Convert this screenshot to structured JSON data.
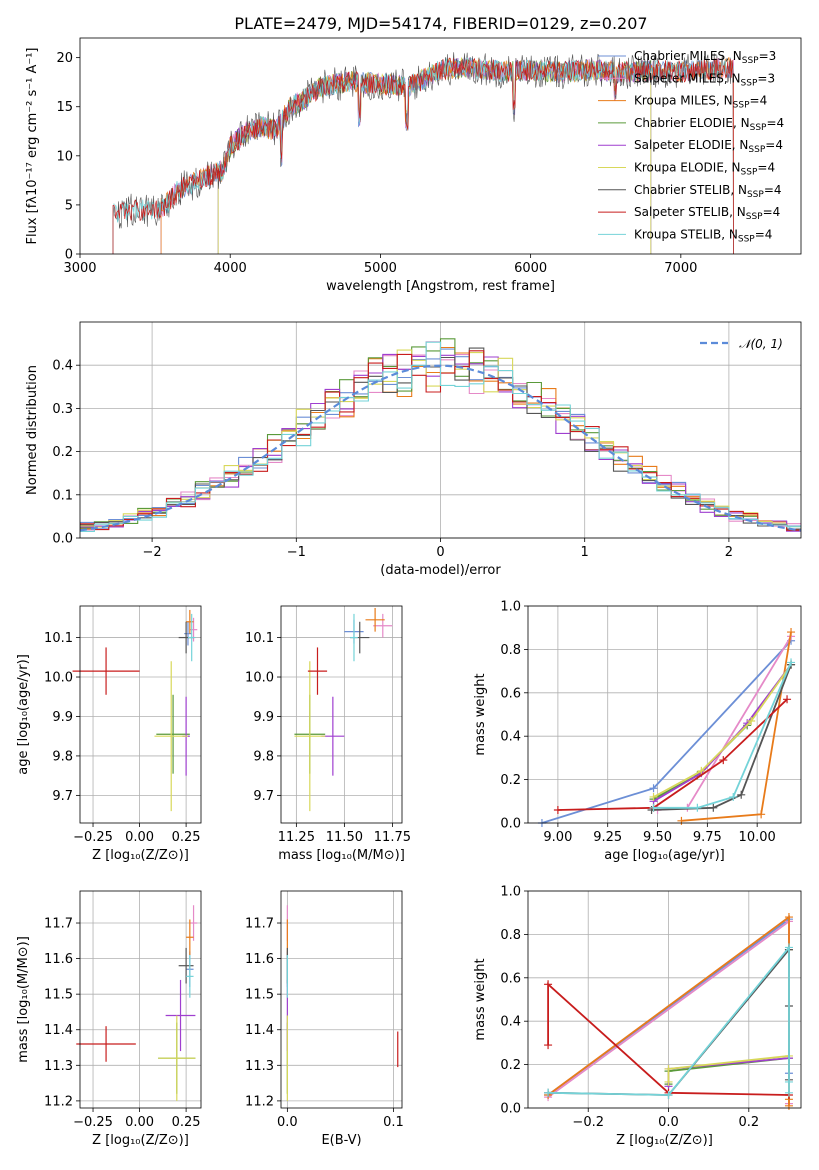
{
  "figure_title": "PLATE=2479, MJD=54174, FIBERID=0129, z=0.207",
  "colors": {
    "Chabrier MILES": "#6c8fd6",
    "Salpeter MILES": "#e58ac8",
    "Kroupa MILES": "#e87b1a",
    "Chabrier ELODIE": "#5a9a3a",
    "Salpeter ELODIE": "#9f3fcf",
    "Kroupa ELODIE": "#d8d85a",
    "Chabrier STELIB": "#555555",
    "Salpeter STELIB": "#c81d1d",
    "Kroupa STELIB": "#74d3d8"
  },
  "chart_data": [
    {
      "id": "spectrum",
      "type": "line",
      "title": "PLATE=2479, MJD=54174, FIBERID=0129, z=0.207",
      "xlabel": "wavelength [Angstrom, rest frame]",
      "ylabel": "Flux [fλ10⁻¹⁷ erg cm⁻² s⁻¹ A⁻¹]",
      "xlim": [
        3000,
        7800
      ],
      "ylim": [
        0,
        22
      ],
      "xticks": [
        3000,
        4000,
        5000,
        6000,
        7000
      ],
      "yticks": [
        0,
        5,
        10,
        15,
        20
      ],
      "grid": false,
      "legend_position": "upper-right",
      "series": [
        {
          "name": "Chabrier MILES, N_SSP=3",
          "color": "#6c8fd6",
          "x_range": [
            3540,
            7350
          ]
        },
        {
          "name": "Salpeter MILES, N_SSP=3",
          "color": "#e58ac8",
          "x_range": [
            3540,
            7350
          ]
        },
        {
          "name": "Kroupa MILES, N_SSP=4",
          "color": "#e87b1a",
          "x_range": [
            3540,
            7350
          ]
        },
        {
          "name": "Chabrier ELODIE, N_SSP=4",
          "color": "#5a9a3a",
          "x_range": [
            3920,
            6800
          ]
        },
        {
          "name": "Salpeter ELODIE, N_SSP=4",
          "color": "#9f3fcf",
          "x_range": [
            3920,
            6800
          ]
        },
        {
          "name": "Kroupa ELODIE, N_SSP=4",
          "color": "#d8d85a",
          "x_range": [
            3920,
            6800
          ]
        },
        {
          "name": "Chabrier STELIB, N_SSP=4",
          "color": "#555555",
          "x_range": [
            3220,
            7350
          ]
        },
        {
          "name": "Salpeter STELIB, N_SSP=4",
          "color": "#c81d1d",
          "x_range": [
            3220,
            7350
          ]
        },
        {
          "name": "Kroupa STELIB, N_SSP=4",
          "color": "#74d3d8",
          "x_range": [
            3220,
            7350
          ]
        }
      ],
      "continuum": {
        "x": [
          3220,
          3400,
          3550,
          3650,
          3750,
          3850,
          3950,
          4000,
          4100,
          4200,
          4300,
          4400,
          4500,
          4600,
          4800,
          5000,
          5200,
          5400,
          5600,
          5800,
          6000,
          6200,
          6400,
          6600,
          6800,
          7000,
          7200,
          7350
        ],
        "y": [
          4.2,
          4.5,
          4.6,
          6.5,
          7.2,
          8.0,
          8.5,
          11.0,
          12.3,
          13.0,
          12.6,
          15.0,
          15.8,
          17.0,
          17.6,
          17.3,
          17.1,
          18.8,
          19.0,
          18.6,
          18.7,
          18.5,
          18.8,
          18.5,
          18.7,
          18.6,
          18.8,
          19.0
        ]
      }
    },
    {
      "id": "residuals",
      "type": "bar",
      "subtype": "step-histogram",
      "xlabel": "(data-model)/error",
      "ylabel": "Normed distribution",
      "xlim": [
        -2.5,
        2.5
      ],
      "ylim": [
        0,
        0.5
      ],
      "xticks": [
        -2,
        -1,
        0,
        1,
        2
      ],
      "yticks": [
        0.0,
        0.1,
        0.2,
        0.3,
        0.4
      ],
      "grid": true,
      "legend": [
        {
          "name": "N(0,1)",
          "style": "dashed",
          "color": "#5b8bd9"
        }
      ],
      "legend_position": "upper-right",
      "bin_width": 0.1,
      "bins_start": -2.5,
      "reference": "normal(0,1)"
    },
    {
      "id": "age_vs_Z",
      "type": "scatter",
      "subtype": "error-bars",
      "xlabel": "Z [log₁₀(Z/Z⊙)]",
      "ylabel": "age  [log₁₀(age/yr)]",
      "xlim": [
        -0.32,
        0.33
      ],
      "ylim": [
        9.63,
        10.18
      ],
      "xticks": [
        -0.25,
        0.0,
        0.25
      ],
      "yticks": [
        9.7,
        9.8,
        9.9,
        10.0,
        10.1
      ],
      "grid": true,
      "points": [
        {
          "model": "Chabrier MILES",
          "x": 0.26,
          "y": 10.11,
          "xerr": 0.02,
          "yerr": 0.03
        },
        {
          "model": "Salpeter MILES",
          "x": 0.29,
          "y": 10.12,
          "xerr": 0.02,
          "yerr": 0.03
        },
        {
          "model": "Kroupa MILES",
          "x": 0.27,
          "y": 10.14,
          "xerr": 0.02,
          "yerr": 0.03
        },
        {
          "model": "Chabrier ELODIE",
          "x": 0.18,
          "y": 9.855,
          "xerr": 0.09,
          "yerr": 0.1
        },
        {
          "model": "Salpeter ELODIE",
          "x": 0.25,
          "y": 9.85,
          "xerr": 0.02,
          "yerr": 0.1
        },
        {
          "model": "Kroupa ELODIE",
          "x": 0.17,
          "y": 9.85,
          "xerr": 0.09,
          "yerr": 0.19
        },
        {
          "model": "Chabrier STELIB",
          "x": 0.25,
          "y": 10.1,
          "xerr": 0.04,
          "yerr": 0.04
        },
        {
          "model": "Salpeter STELIB",
          "x": -0.18,
          "y": 10.015,
          "xerr": 0.18,
          "yerr": 0.06
        },
        {
          "model": "Kroupa STELIB",
          "x": 0.28,
          "y": 10.1,
          "xerr": 0.02,
          "yerr": 0.06
        }
      ]
    },
    {
      "id": "age_vs_mass",
      "type": "scatter",
      "subtype": "error-bars",
      "xlabel": "mass [log₁₀(M/M⊙)]",
      "xlim": [
        11.17,
        11.8
      ],
      "ylim": [
        9.63,
        10.18
      ],
      "xticks": [
        11.25,
        11.5,
        11.75
      ],
      "yticks": [
        9.7,
        9.8,
        9.9,
        10.0,
        10.1
      ],
      "grid": true,
      "points": [
        {
          "model": "Chabrier MILES",
          "x": 11.55,
          "y": 10.115,
          "xerr": 0.05,
          "yerr": 0.03
        },
        {
          "model": "Salpeter MILES",
          "x": 11.7,
          "y": 10.13,
          "xerr": 0.05,
          "yerr": 0.03
        },
        {
          "model": "Kroupa MILES",
          "x": 11.66,
          "y": 10.145,
          "xerr": 0.05,
          "yerr": 0.03
        },
        {
          "model": "Chabrier ELODIE",
          "x": 11.32,
          "y": 9.855,
          "xerr": 0.08,
          "yerr": 0.1
        },
        {
          "model": "Salpeter ELODIE",
          "x": 11.44,
          "y": 9.85,
          "xerr": 0.06,
          "yerr": 0.1
        },
        {
          "model": "Kroupa ELODIE",
          "x": 11.32,
          "y": 9.85,
          "xerr": 0.08,
          "yerr": 0.19
        },
        {
          "model": "Chabrier STELIB",
          "x": 11.58,
          "y": 10.1,
          "xerr": 0.05,
          "yerr": 0.04
        },
        {
          "model": "Salpeter STELIB",
          "x": 11.36,
          "y": 10.015,
          "xerr": 0.05,
          "yerr": 0.06
        },
        {
          "model": "Kroupa STELIB",
          "x": 11.55,
          "y": 10.1,
          "xerr": 0.02,
          "yerr": 0.06
        }
      ]
    },
    {
      "id": "mass_weight_vs_age",
      "type": "line",
      "xlabel": "age  [log₁₀(age/yr)]",
      "ylabel": "mass weight",
      "xlim": [
        8.85,
        10.22
      ],
      "ylim": [
        0,
        1.0
      ],
      "xticks": [
        9.0,
        9.25,
        9.5,
        9.75,
        10.0
      ],
      "yticks": [
        0.0,
        0.2,
        0.4,
        0.6,
        0.8,
        1.0
      ],
      "grid": true,
      "series": [
        {
          "name": "Chabrier MILES",
          "x": [
            8.92,
            9.48,
            10.17
          ],
          "y": [
            0.0,
            0.16,
            0.84
          ]
        },
        {
          "name": "Salpeter MILES",
          "x": [
            9.5,
            9.65,
            10.17
          ],
          "y": [
            0.06,
            0.07,
            0.86
          ]
        },
        {
          "name": "Kroupa MILES",
          "x": [
            9.62,
            10.02,
            10.17
          ],
          "y": [
            0.01,
            0.04,
            0.88
          ]
        },
        {
          "name": "Chabrier ELODIE",
          "x": [
            9.48,
            9.7,
            9.95,
            10.17
          ],
          "y": [
            0.11,
            0.22,
            0.45,
            0.73
          ]
        },
        {
          "name": "Salpeter ELODIE",
          "x": [
            9.48,
            9.72,
            9.95,
            10.17
          ],
          "y": [
            0.1,
            0.23,
            0.46,
            0.73
          ]
        },
        {
          "name": "Kroupa ELODIE",
          "x": [
            9.48,
            9.72,
            9.97,
            10.17
          ],
          "y": [
            0.12,
            0.24,
            0.47,
            0.73
          ]
        },
        {
          "name": "Chabrier STELIB",
          "x": [
            9.47,
            9.78,
            9.92,
            10.17
          ],
          "y": [
            0.06,
            0.07,
            0.13,
            0.73
          ]
        },
        {
          "name": "Salpeter STELIB",
          "x": [
            9.0,
            9.48,
            9.83,
            10.15
          ],
          "y": [
            0.06,
            0.07,
            0.29,
            0.57
          ]
        },
        {
          "name": "Kroupa STELIB",
          "x": [
            9.48,
            9.7,
            9.88,
            10.17
          ],
          "y": [
            0.07,
            0.07,
            0.12,
            0.74
          ]
        }
      ]
    },
    {
      "id": "mass_vs_Z",
      "type": "scatter",
      "subtype": "error-bars",
      "xlabel": "Z [log₁₀(Z/Z⊙)]",
      "ylabel": "mass [log₁₀(M/M⊙)]",
      "xlim": [
        -0.32,
        0.33
      ],
      "ylim": [
        11.18,
        11.79
      ],
      "xticks": [
        -0.25,
        0.0,
        0.25
      ],
      "yticks": [
        11.2,
        11.3,
        11.4,
        11.5,
        11.6,
        11.7
      ],
      "grid": true,
      "points": [
        {
          "model": "Chabrier MILES",
          "x": 0.27,
          "y": 11.57,
          "xerr": 0.02,
          "yerr": 0.05
        },
        {
          "model": "Salpeter MILES",
          "x": 0.29,
          "y": 11.7,
          "xerr": 0.02,
          "yerr": 0.05
        },
        {
          "model": "Kroupa MILES",
          "x": 0.27,
          "y": 11.66,
          "xerr": 0.02,
          "yerr": 0.05
        },
        {
          "model": "Chabrier ELODIE",
          "x": 0.2,
          "y": 11.32,
          "xerr": 0.1,
          "yerr": 0.1
        },
        {
          "model": "Salpeter ELODIE",
          "x": 0.22,
          "y": 11.44,
          "xerr": 0.08,
          "yerr": 0.1
        },
        {
          "model": "Kroupa ELODIE",
          "x": 0.2,
          "y": 11.32,
          "xerr": 0.1,
          "yerr": 0.12
        },
        {
          "model": "Chabrier STELIB",
          "x": 0.25,
          "y": 11.58,
          "xerr": 0.04,
          "yerr": 0.05
        },
        {
          "model": "Salpeter STELIB",
          "x": -0.18,
          "y": 11.36,
          "xerr": 0.16,
          "yerr": 0.05
        },
        {
          "model": "Kroupa STELIB",
          "x": 0.27,
          "y": 11.55,
          "xerr": 0.02,
          "yerr": 0.06
        }
      ]
    },
    {
      "id": "mass_vs_ebv",
      "type": "scatter",
      "subtype": "error-bars",
      "xlabel": "E(B-V)",
      "xlim": [
        -0.006,
        0.108
      ],
      "ylim": [
        11.18,
        11.79
      ],
      "xticks": [
        0.0,
        0.1
      ],
      "yticks": [
        11.2,
        11.3,
        11.4,
        11.5,
        11.6,
        11.7
      ],
      "grid": true,
      "points": [
        {
          "model": "Chabrier MILES",
          "x": 0.0,
          "y": 11.57,
          "yerr": 0.05
        },
        {
          "model": "Salpeter MILES",
          "x": 0.0,
          "y": 11.7,
          "yerr": 0.05
        },
        {
          "model": "Kroupa MILES",
          "x": 0.0,
          "y": 11.66,
          "yerr": 0.05
        },
        {
          "model": "Chabrier ELODIE",
          "x": 0.0,
          "y": 11.32,
          "yerr": 0.1
        },
        {
          "model": "Salpeter ELODIE",
          "x": 0.0,
          "y": 11.44,
          "yerr": 0.1
        },
        {
          "model": "Kroupa ELODIE",
          "x": 0.0,
          "y": 11.32,
          "yerr": 0.12
        },
        {
          "model": "Chabrier STELIB",
          "x": 0.0,
          "y": 11.58,
          "yerr": 0.05
        },
        {
          "model": "Salpeter STELIB",
          "x": 0.104,
          "y": 11.345,
          "yerr": 0.05
        },
        {
          "model": "Kroupa STELIB",
          "x": 0.0,
          "y": 11.55,
          "yerr": 0.06
        }
      ]
    },
    {
      "id": "mass_weight_vs_Z",
      "type": "line",
      "xlabel": "Z [log₁₀(Z/Z⊙)]",
      "ylabel": "mass weight",
      "xlim": [
        -0.35,
        0.33
      ],
      "ylim": [
        0,
        1.0
      ],
      "xticks": [
        -0.2,
        0.0,
        0.2
      ],
      "yticks": [
        0.0,
        0.2,
        0.4,
        0.6,
        0.8,
        1.0
      ],
      "grid": true,
      "series": [
        {
          "name": "Chabrier MILES",
          "x": [
            -0.3,
            0.3,
            0.3
          ],
          "y": [
            0.06,
            0.87,
            0.16
          ]
        },
        {
          "name": "Salpeter MILES",
          "x": [
            -0.3,
            0.3,
            0.3
          ],
          "y": [
            0.05,
            0.86,
            0.02
          ]
        },
        {
          "name": "Kroupa MILES",
          "x": [
            -0.3,
            0.3,
            0.3,
            0.3
          ],
          "y": [
            0.06,
            0.88,
            0.04,
            0.01
          ]
        },
        {
          "name": "Chabrier ELODIE",
          "x": [
            0.0,
            0.0,
            0.3,
            0.3
          ],
          "y": [
            0.11,
            0.17,
            0.23,
            0.73
          ]
        },
        {
          "name": "Salpeter ELODIE",
          "x": [
            0.0,
            0.0,
            0.3,
            0.3
          ],
          "y": [
            0.1,
            0.18,
            0.23,
            0.73
          ]
        },
        {
          "name": "Kroupa ELODIE",
          "x": [
            0.0,
            0.0,
            0.3,
            0.3
          ],
          "y": [
            0.12,
            0.18,
            0.24,
            0.73
          ]
        },
        {
          "name": "Chabrier STELIB",
          "x": [
            -0.3,
            0.0,
            0.3,
            0.3,
            0.3
          ],
          "y": [
            0.07,
            0.06,
            0.73,
            0.47,
            0.13
          ]
        },
        {
          "name": "Salpeter STELIB",
          "x": [
            -0.3,
            -0.3,
            0.0,
            0.3
          ],
          "y": [
            0.29,
            0.57,
            0.07,
            0.06
          ]
        },
        {
          "name": "Kroupa STELIB",
          "x": [
            -0.3,
            0.0,
            0.3,
            0.3,
            0.3
          ],
          "y": [
            0.07,
            0.06,
            0.74,
            0.12,
            0.07
          ]
        }
      ]
    }
  ]
}
